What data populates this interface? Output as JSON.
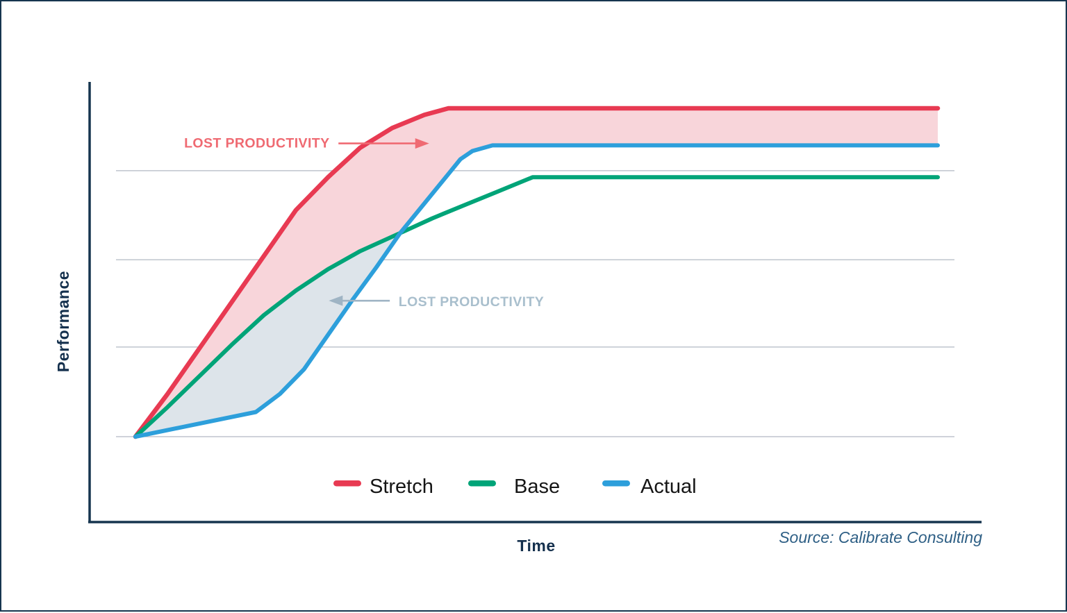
{
  "frame": {
    "border_color": "#16354f",
    "background": "#ffffff"
  },
  "axis_titles": {
    "x": "Time",
    "y": "Performance"
  },
  "source": {
    "text": "Source: Calibrate Consulting",
    "color": "#2e5f85"
  },
  "legend": {
    "position": "bottom-center",
    "items": [
      {
        "label": "Stretch",
        "color": "#e83a52"
      },
      {
        "label": "Base",
        "color": "#00a478"
      },
      {
        "label": "Actual",
        "color": "#2d9fdb"
      }
    ]
  },
  "chart_data": {
    "type": "line",
    "title": "",
    "xlabel": "Time",
    "ylabel": "Performance",
    "x_ticks": [],
    "y_ticks": [],
    "xlim": [
      0,
      100
    ],
    "ylim": [
      0,
      100
    ],
    "units_note": "qualitative chart - no numeric tick labels; values on relative 0-100 scale",
    "grid": "horizontal gridlines only",
    "gridlines_y": [
      0,
      27.3,
      53.9,
      81
    ],
    "gridline_color": "#b2b8c3",
    "cross_x": 33,
    "series": [
      {
        "name": "Stretch",
        "color": "#e83a52",
        "width": 6.5,
        "points": [
          [
            0,
            0
          ],
          [
            4,
            13
          ],
          [
            8,
            27
          ],
          [
            12,
            41
          ],
          [
            16,
            55
          ],
          [
            20,
            69
          ],
          [
            24,
            79
          ],
          [
            28,
            88
          ],
          [
            32,
            94
          ],
          [
            36,
            98
          ],
          [
            39,
            100
          ],
          [
            100,
            100
          ]
        ]
      },
      {
        "name": "Base",
        "color": "#00a478",
        "width": 6,
        "points": [
          [
            0,
            0
          ],
          [
            4,
            9
          ],
          [
            8,
            18.5
          ],
          [
            12,
            28
          ],
          [
            16,
            37
          ],
          [
            20,
            44.5
          ],
          [
            24,
            51
          ],
          [
            28,
            56.5
          ],
          [
            33,
            62
          ],
          [
            37,
            66.5
          ],
          [
            41,
            70.5
          ],
          [
            45,
            74.5
          ],
          [
            49.5,
            79
          ],
          [
            100,
            79
          ]
        ]
      },
      {
        "name": "Actual",
        "color": "#2d9fdb",
        "width": 6,
        "points": [
          [
            0,
            0
          ],
          [
            7,
            3.5
          ],
          [
            15,
            7.5
          ],
          [
            18,
            13
          ],
          [
            21,
            20.5
          ],
          [
            24,
            31
          ],
          [
            27,
            41.5
          ],
          [
            30,
            51.5
          ],
          [
            33,
            62
          ],
          [
            36,
            71
          ],
          [
            39,
            80
          ],
          [
            40.5,
            84.5
          ],
          [
            42,
            87
          ],
          [
            44.5,
            88.7
          ],
          [
            100,
            88.7
          ]
        ]
      }
    ],
    "areas": [
      {
        "name": "lost-productivity-upper",
        "between": [
          "Stretch",
          "max(Base, Actual)"
        ],
        "fill": "#f8d5da"
      },
      {
        "name": "lost-productivity-lower",
        "between": [
          "Base",
          "Actual"
        ],
        "x_range": [
          0,
          33
        ],
        "fill": "#dde4ea"
      }
    ],
    "annotations": [
      {
        "text": "LOST PRODUCTIVITY",
        "color": "#ef6a72",
        "align": "right",
        "tx": 24.2,
        "ty": 89.5,
        "arrow_dir": "right",
        "arrow_color": "#ef6a72",
        "arrow_from_x": 25.3,
        "arrow_to_x": 36.6,
        "arrow_y": 89.3
      },
      {
        "text": "LOST PRODUCTIVITY",
        "color": "#a9bfcd",
        "align": "left",
        "tx": 32.8,
        "ty": 41.2,
        "arrow_dir": "left",
        "arrow_color": "#9fb4c4",
        "arrow_from_x": 31.7,
        "arrow_to_x": 24.1,
        "arrow_y": 41.4
      }
    ],
    "legend_position": "bottom-center"
  }
}
